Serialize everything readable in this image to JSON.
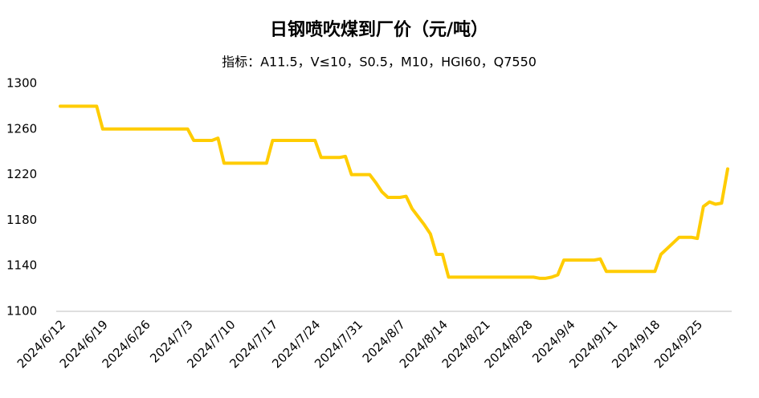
{
  "chart_data": {
    "type": "line",
    "title": "日钢喷吹煤到厂价（元/吨）",
    "subtitle": "指标：A11.5，V≤10，S0.5，M10，HGI60，Q7550",
    "categories": [
      "2024/6/12",
      null,
      null,
      null,
      null,
      null,
      null,
      "2024/6/19",
      null,
      null,
      null,
      null,
      null,
      null,
      "2024/6/26",
      null,
      null,
      null,
      null,
      null,
      null,
      "2024/7/3",
      null,
      null,
      null,
      null,
      null,
      null,
      "2024/7/10",
      null,
      null,
      null,
      null,
      null,
      null,
      "2024/7/17",
      null,
      null,
      null,
      null,
      null,
      null,
      "2024/7/24",
      null,
      null,
      null,
      null,
      null,
      null,
      "2024/7/31",
      null,
      null,
      null,
      null,
      null,
      null,
      "2024/8/7",
      null,
      null,
      null,
      null,
      null,
      null,
      "2024/8/14",
      null,
      null,
      null,
      null,
      null,
      null,
      "2024/8/21",
      null,
      null,
      null,
      null,
      null,
      null,
      "2024/8/28",
      null,
      null,
      null,
      null,
      null,
      null,
      "2024/9/4",
      null,
      null,
      null,
      null,
      null,
      null,
      "2024/9/11",
      null,
      null,
      null,
      null,
      null,
      null,
      "2024/9/18",
      null,
      null,
      null,
      null,
      null,
      null,
      "2024/9/25",
      null,
      null,
      null,
      null,
      null
    ],
    "values": [
      1280,
      1280,
      1280,
      1280,
      1280,
      1280,
      1280,
      1260,
      1260,
      1260,
      1260,
      1260,
      1260,
      1260,
      1260,
      1260,
      1260,
      1260,
      1260,
      1260,
      1260,
      1260,
      1250,
      1250,
      1250,
      1250,
      1252,
      1230,
      1230,
      1230,
      1230,
      1230,
      1230,
      1230,
      1230,
      1250,
      1250,
      1250,
      1250,
      1250,
      1250,
      1250,
      1250,
      1235,
      1235,
      1235,
      1235,
      1236,
      1220,
      1220,
      1220,
      1220,
      1213,
      1205,
      1200,
      1200,
      1200,
      1201,
      1190,
      1183,
      1176,
      1168,
      1150,
      1150,
      1130,
      1130,
      1130,
      1130,
      1130,
      1130,
      1130,
      1130,
      1130,
      1130,
      1130,
      1130,
      1130,
      1130,
      1130,
      1129,
      1129,
      1130,
      1132,
      1145,
      1145,
      1145,
      1145,
      1145,
      1145,
      1146,
      1135,
      1135,
      1135,
      1135,
      1135,
      1135,
      1135,
      1135,
      1135,
      1150,
      1155,
      1160,
      1165,
      1165,
      1165,
      1164,
      1192,
      1196,
      1194,
      1195,
      1225
    ],
    "color": "#FFCC00",
    "ylim": [
      1100,
      1300
    ],
    "yticks": [
      1100,
      1140,
      1180,
      1220,
      1260,
      1300
    ],
    "grid": false
  }
}
